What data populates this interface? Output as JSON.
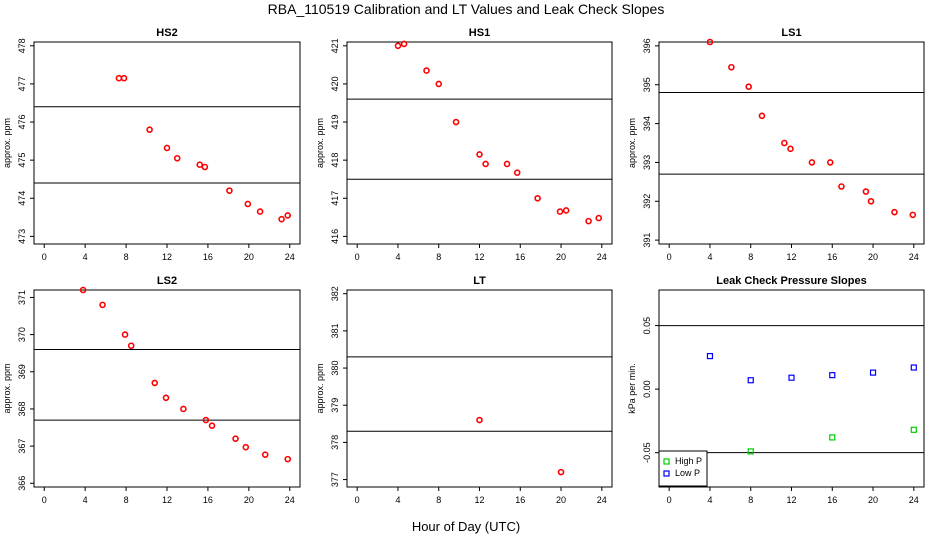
{
  "figure": {
    "title": "RBA_110519  Calibration and LT Values and Leak Check Slopes",
    "xlabel": "Hour of Day (UTC)"
  },
  "colors": {
    "red": "#ff0000",
    "green": "#00cc00",
    "blue": "#0000ff",
    "line": "#000000"
  },
  "chart_data": [
    {
      "id": "hs2",
      "type": "scatter",
      "title": "HS2",
      "ylabel": "approx. ppm",
      "xlim": [
        -1,
        25
      ],
      "ylim": [
        472.8,
        478.1
      ],
      "xticks": [
        0,
        4,
        8,
        12,
        16,
        20,
        24
      ],
      "yticks": [
        473,
        474,
        475,
        476,
        477,
        478
      ],
      "hlines": [
        474.4,
        476.4
      ],
      "series": [
        {
          "name": "HS2",
          "color": "#ff0000",
          "x": [
            7.3,
            7.8,
            10.3,
            12.0,
            13.0,
            15.2,
            15.7,
            18.1,
            19.9,
            21.1,
            23.2,
            23.8
          ],
          "y": [
            477.15,
            477.15,
            475.8,
            475.32,
            475.05,
            474.88,
            474.82,
            474.2,
            473.85,
            473.65,
            473.45,
            473.55
          ]
        }
      ]
    },
    {
      "id": "hs1",
      "type": "scatter",
      "title": "HS1",
      "ylabel": "approx. ppm",
      "xlim": [
        -1,
        25
      ],
      "ylim": [
        415.8,
        421.1
      ],
      "xticks": [
        0,
        4,
        8,
        12,
        16,
        20,
        24
      ],
      "yticks": [
        416,
        417,
        418,
        419,
        420,
        421
      ],
      "hlines": [
        417.5,
        419.6
      ],
      "series": [
        {
          "name": "HS1",
          "color": "#ff0000",
          "x": [
            4.0,
            4.6,
            6.8,
            8.0,
            9.7,
            12.0,
            12.6,
            14.7,
            15.7,
            17.7,
            19.9,
            20.5,
            22.7,
            23.7
          ],
          "y": [
            421.0,
            421.05,
            420.35,
            420.0,
            419.0,
            418.15,
            417.9,
            417.9,
            417.67,
            417.0,
            416.65,
            416.68,
            416.4,
            416.48
          ]
        }
      ]
    },
    {
      "id": "ls1",
      "type": "scatter",
      "title": "LS1",
      "ylabel": "approx. ppm",
      "xlim": [
        -1,
        25
      ],
      "ylim": [
        390.9,
        396.1
      ],
      "xticks": [
        0,
        4,
        8,
        12,
        16,
        20,
        24
      ],
      "yticks": [
        391,
        392,
        393,
        394,
        395,
        396
      ],
      "hlines": [
        392.7,
        394.8
      ],
      "series": [
        {
          "name": "LS1",
          "color": "#ff0000",
          "x": [
            4.0,
            6.1,
            7.8,
            9.1,
            11.3,
            11.9,
            14.0,
            15.8,
            16.9,
            19.3,
            19.8,
            22.1,
            23.9
          ],
          "y": [
            396.1,
            395.45,
            394.95,
            394.2,
            393.5,
            393.35,
            393.0,
            393.0,
            392.38,
            392.25,
            392.0,
            391.72,
            391.65
          ]
        }
      ]
    },
    {
      "id": "ls2",
      "type": "scatter",
      "title": "LS2",
      "ylabel": "approx. ppm",
      "xlim": [
        -1,
        25
      ],
      "ylim": [
        365.9,
        371.2
      ],
      "xticks": [
        0,
        4,
        8,
        12,
        16,
        20,
        24
      ],
      "yticks": [
        366,
        367,
        368,
        369,
        370,
        371
      ],
      "hlines": [
        367.7,
        369.6
      ],
      "series": [
        {
          "name": "LS2",
          "color": "#ff0000",
          "x": [
            3.8,
            5.7,
            7.9,
            8.5,
            10.8,
            11.9,
            13.6,
            15.8,
            16.4,
            18.7,
            19.7,
            21.6,
            23.8
          ],
          "y": [
            371.2,
            370.8,
            370.0,
            369.7,
            368.7,
            368.3,
            368.0,
            367.7,
            367.55,
            367.2,
            366.97,
            366.77,
            366.65
          ]
        }
      ]
    },
    {
      "id": "lt",
      "type": "scatter",
      "title": "LT",
      "ylabel": "approx. ppm",
      "xlim": [
        -1,
        25
      ],
      "ylim": [
        376.8,
        382.1
      ],
      "xticks": [
        0,
        4,
        8,
        12,
        16,
        20,
        24
      ],
      "yticks": [
        377,
        378,
        379,
        380,
        381,
        382
      ],
      "hlines": [
        378.3,
        380.3
      ],
      "series": [
        {
          "name": "LT",
          "color": "#ff0000",
          "x": [
            12.0,
            20.0
          ],
          "y": [
            378.6,
            377.2
          ]
        }
      ]
    },
    {
      "id": "leak",
      "type": "scatter",
      "title": "Leak Check Pressure Slopes",
      "ylabel": "kPa per min.",
      "xlim": [
        -1,
        25
      ],
      "ylim": [
        -0.077,
        0.078
      ],
      "xticks": [
        0,
        4,
        8,
        12,
        16,
        20,
        24
      ],
      "yticks": [
        -0.05,
        0.0,
        0.05
      ],
      "ytick_labels": [
        "-0.05",
        "0.00",
        "0.05"
      ],
      "hlines": [
        -0.05,
        0.05
      ],
      "legend": {
        "position": "bottom-left",
        "entries": [
          "High P",
          "Low P"
        ]
      },
      "series": [
        {
          "name": "High P",
          "color": "#00cc00",
          "x": [
            8,
            16,
            24
          ],
          "y": [
            -0.049,
            -0.038,
            -0.032
          ]
        },
        {
          "name": "Low P",
          "color": "#0000ff",
          "x": [
            4,
            8,
            12,
            16,
            20,
            24
          ],
          "y": [
            0.026,
            0.007,
            0.009,
            0.011,
            0.013,
            0.017
          ]
        }
      ]
    }
  ]
}
